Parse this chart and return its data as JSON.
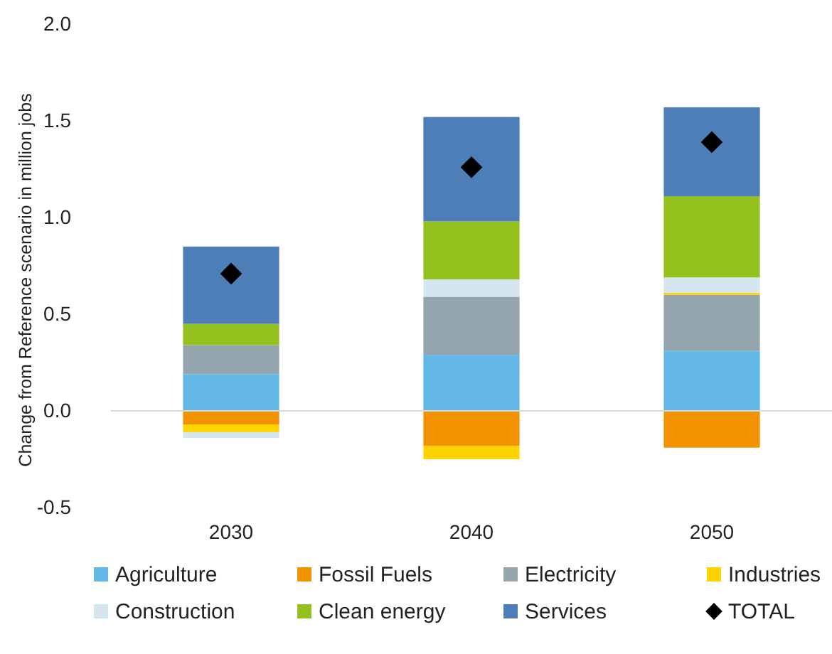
{
  "chart_data": {
    "type": "bar",
    "stacked": true,
    "ylabel": "Change from Reference scenario in million jobs",
    "categories": [
      "2030",
      "2040",
      "2050"
    ],
    "series": [
      {
        "name": "Agriculture",
        "color": "#63b8e8",
        "values": [
          0.19,
          0.29,
          0.31
        ]
      },
      {
        "name": "Fossil Fuels",
        "color": "#f39200",
        "values": [
          -0.07,
          -0.18,
          -0.19
        ]
      },
      {
        "name": "Electricity",
        "color": "#95a5ae",
        "values": [
          0.15,
          0.3,
          0.29
        ]
      },
      {
        "name": "Industries",
        "color": "#ffd300",
        "values": [
          -0.04,
          -0.07,
          0.01
        ]
      },
      {
        "name": "Construction",
        "color": "#d6e6f0",
        "values": [
          -0.03,
          0.09,
          0.08
        ]
      },
      {
        "name": "Clean energy",
        "color": "#95c11f",
        "values": [
          0.11,
          0.3,
          0.42
        ]
      },
      {
        "name": "Services",
        "color": "#4d7eb8",
        "values": [
          0.4,
          0.54,
          0.46
        ]
      },
      {
        "name": "TOTAL",
        "type": "scatter",
        "marker": "diamond",
        "color": "#000000",
        "values": [
          0.71,
          1.26,
          1.39
        ]
      }
    ],
    "ylim": [
      -0.5,
      2.0
    ],
    "yticks": [
      {
        "value": -0.5,
        "label": "-0.5"
      },
      {
        "value": 0,
        "label": "0.0"
      },
      {
        "value": 0.5,
        "label": "0.5"
      },
      {
        "value": 1,
        "label": "1.0"
      },
      {
        "value": 1.5,
        "label": "1.5"
      },
      {
        "value": 2,
        "label": "2.0"
      }
    ],
    "legend": "bottom"
  }
}
